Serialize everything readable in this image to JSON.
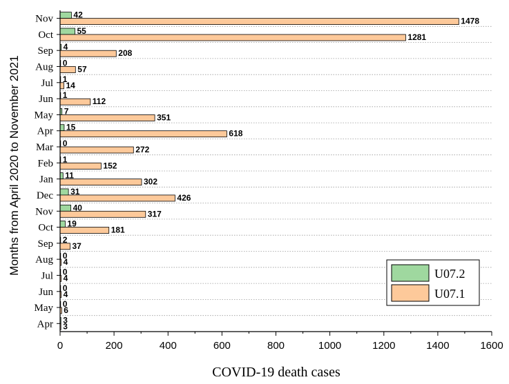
{
  "chart_data": {
    "type": "bar",
    "orientation": "horizontal",
    "categories": [
      "Apr",
      "May",
      "Jun",
      "Jul",
      "Aug",
      "Sep",
      "Oct",
      "Nov",
      "Dec",
      "Jan",
      "Feb",
      "Mar",
      "Apr",
      "May",
      "Jun",
      "Jul",
      "Aug",
      "Sep",
      "Oct",
      "Nov"
    ],
    "series": [
      {
        "name": "U07.2",
        "color": "#9fd89f",
        "values": [
          3,
          0,
          0,
          0,
          0,
          2,
          19,
          40,
          31,
          11,
          1,
          0,
          15,
          7,
          1,
          1,
          0,
          4,
          55,
          42
        ]
      },
      {
        "name": "U07.1",
        "color": "#fdc99a",
        "values": [
          3,
          6,
          4,
          4,
          4,
          37,
          181,
          317,
          426,
          302,
          152,
          272,
          618,
          351,
          112,
          14,
          57,
          208,
          1281,
          1478
        ]
      }
    ],
    "xlabel": "COVID-19 death cases",
    "ylabel": "Months from April 2020 to November 2021",
    "xlim": [
      0,
      1600
    ],
    "xticks": [
      0,
      200,
      400,
      600,
      800,
      1000,
      1200,
      1400,
      1600
    ],
    "grid": "dotted horizontal",
    "legend": {
      "placement": "bottom-right",
      "entries": [
        "U07.2",
        "U07.1"
      ]
    }
  }
}
